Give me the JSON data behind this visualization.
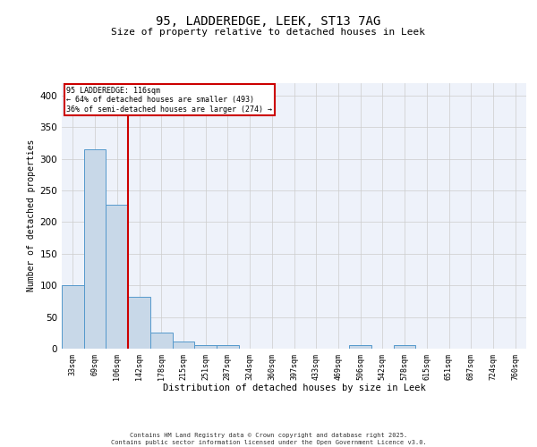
{
  "title_line1": "95, LADDEREDGE, LEEK, ST13 7AG",
  "title_line2": "Size of property relative to detached houses in Leek",
  "xlabel": "Distribution of detached houses by size in Leek",
  "ylabel": "Number of detached properties",
  "categories": [
    "33sqm",
    "69sqm",
    "106sqm",
    "142sqm",
    "178sqm",
    "215sqm",
    "251sqm",
    "287sqm",
    "324sqm",
    "360sqm",
    "397sqm",
    "433sqm",
    "469sqm",
    "506sqm",
    "542sqm",
    "578sqm",
    "615sqm",
    "651sqm",
    "687sqm",
    "724sqm",
    "760sqm"
  ],
  "values": [
    100,
    315,
    228,
    82,
    25,
    11,
    6,
    5,
    0,
    0,
    0,
    0,
    0,
    5,
    0,
    5,
    0,
    0,
    0,
    0,
    0
  ],
  "bar_color": "#c8d8e8",
  "bar_edge_color": "#5599cc",
  "vline_x": 2.5,
  "vline_color": "#cc0000",
  "annotation_text": "95 LADDEREDGE: 116sqm\n← 64% of detached houses are smaller (493)\n36% of semi-detached houses are larger (274) →",
  "annotation_box_color": "#ffffff",
  "annotation_box_edge": "#cc0000",
  "ylim": [
    0,
    420
  ],
  "yticks": [
    0,
    50,
    100,
    150,
    200,
    250,
    300,
    350,
    400
  ],
  "grid_color": "#cccccc",
  "background_color": "#eef2fa",
  "footer_line1": "Contains HM Land Registry data © Crown copyright and database right 2025.",
  "footer_line2": "Contains public sector information licensed under the Open Government Licence v3.0."
}
